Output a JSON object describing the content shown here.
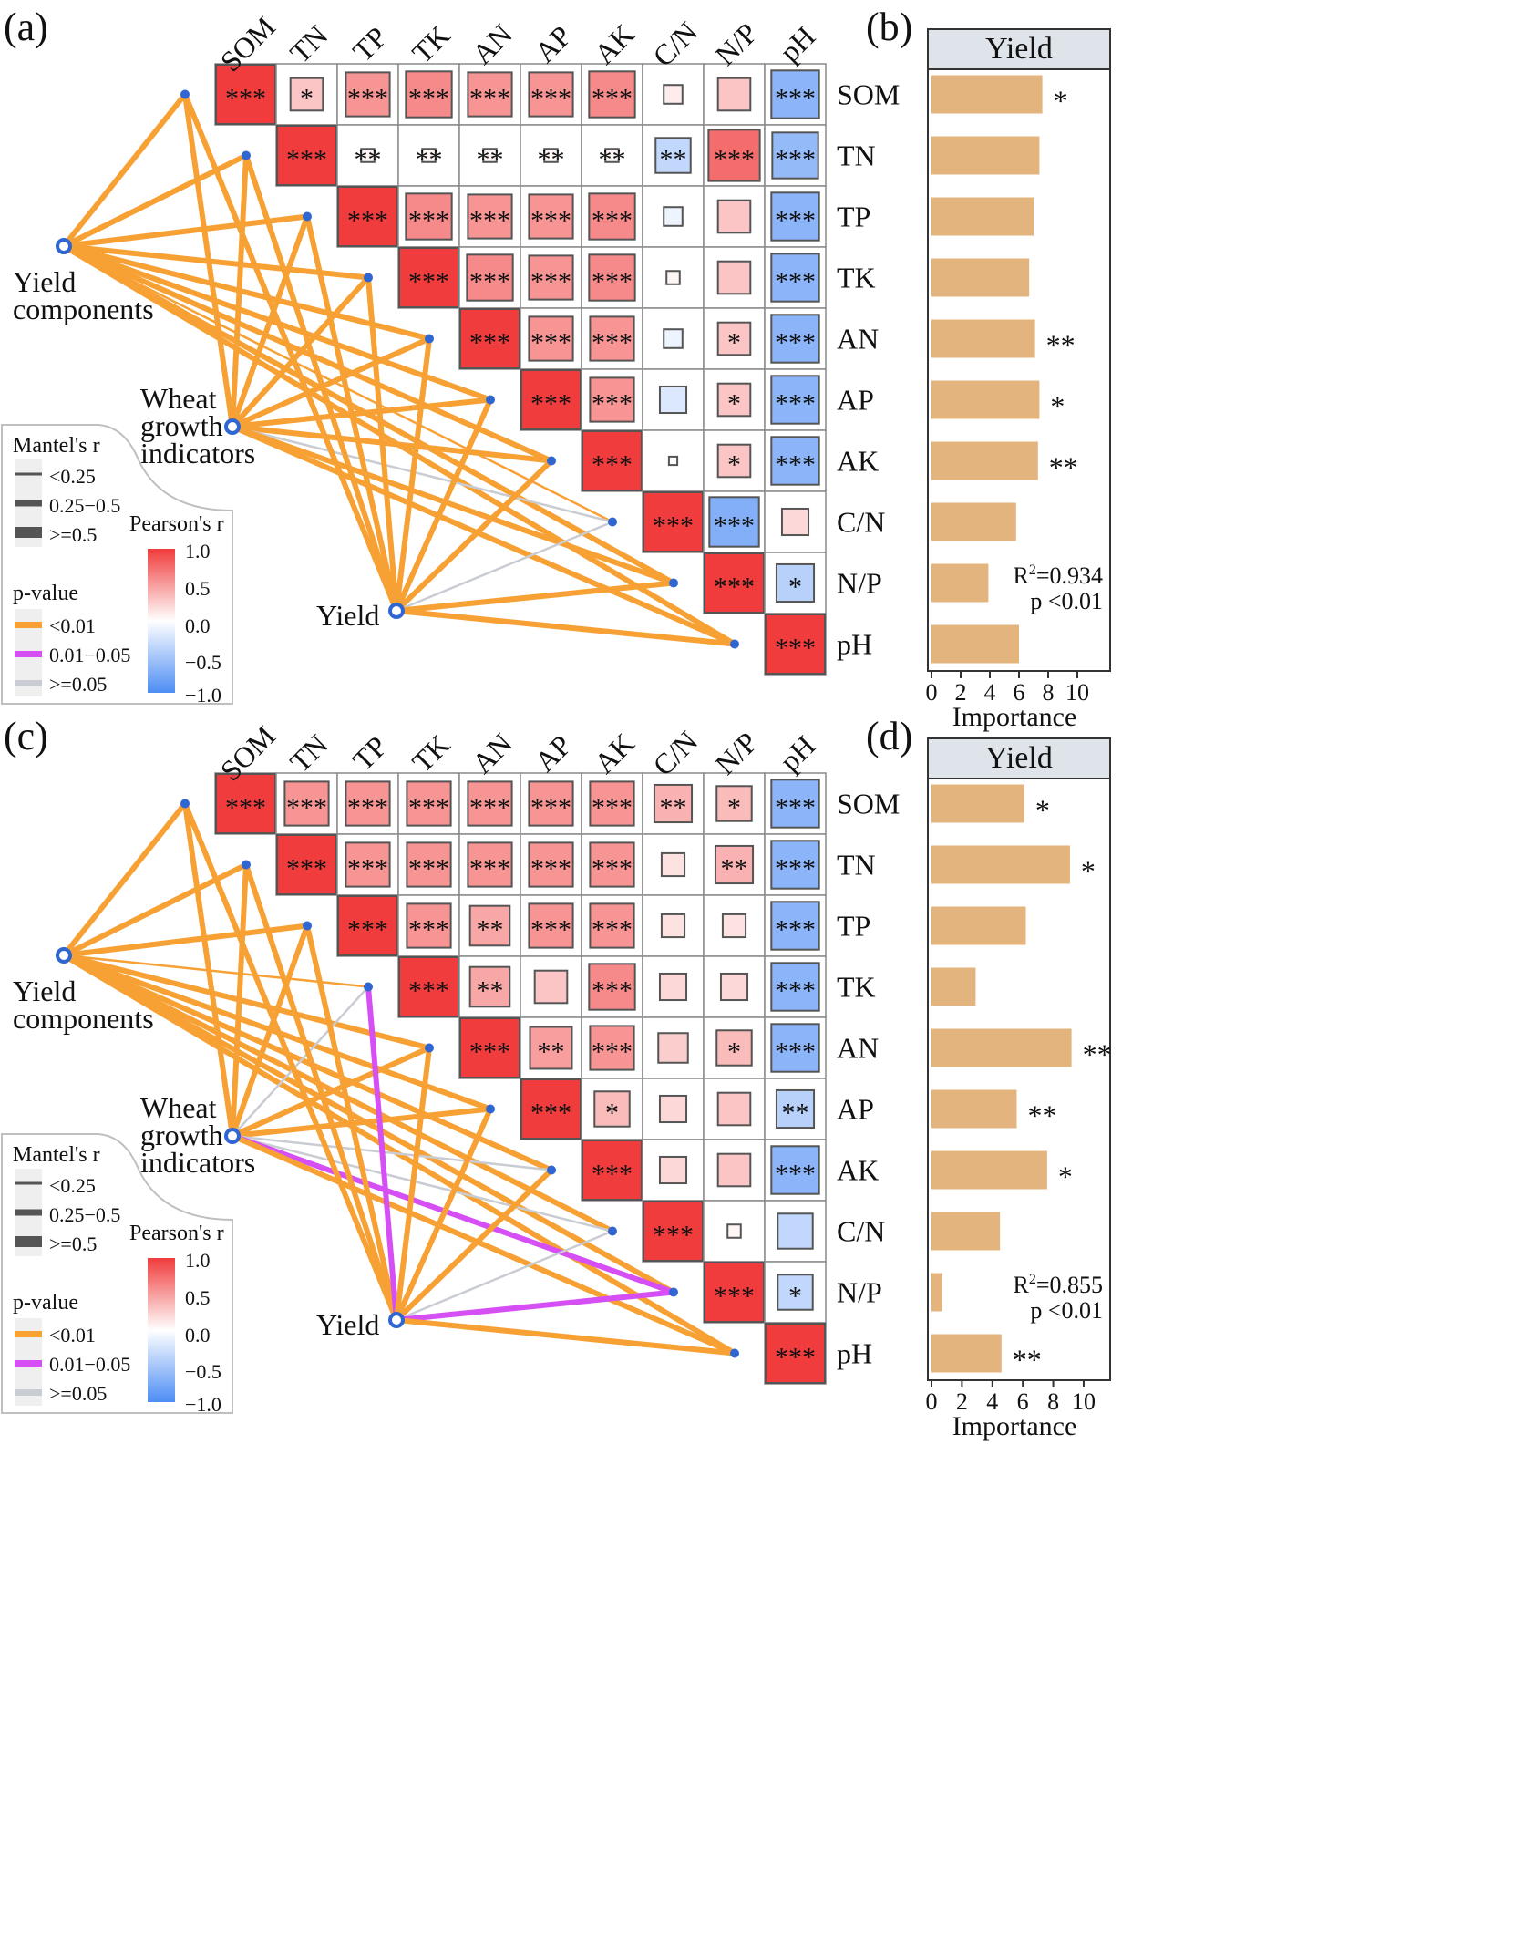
{
  "chart_data": [
    {
      "type": "heatmap",
      "panel_label": "(a)",
      "variables": [
        "SOM",
        "TN",
        "TP",
        "TK",
        "AN",
        "AP",
        "AK",
        "C/N",
        "N/P",
        "pH"
      ],
      "values": [
        [
          1.0,
          0.3,
          0.55,
          0.6,
          0.55,
          0.55,
          0.6,
          0.1,
          0.3,
          -0.65
        ],
        [
          null,
          1.0,
          0.05,
          0.05,
          0.05,
          0.05,
          0.05,
          -0.35,
          0.75,
          -0.6
        ],
        [
          null,
          null,
          1.0,
          0.6,
          0.55,
          0.55,
          0.6,
          -0.1,
          0.3,
          -0.65
        ],
        [
          null,
          null,
          null,
          1.0,
          0.6,
          0.55,
          0.6,
          0.05,
          0.3,
          -0.65
        ],
        [
          null,
          null,
          null,
          null,
          1.0,
          0.55,
          0.55,
          -0.1,
          0.3,
          -0.65
        ],
        [
          null,
          null,
          null,
          null,
          null,
          1.0,
          0.55,
          -0.2,
          0.3,
          -0.65
        ],
        [
          null,
          null,
          null,
          null,
          null,
          null,
          1.0,
          -0.02,
          0.3,
          -0.65
        ],
        [
          null,
          null,
          null,
          null,
          null,
          null,
          null,
          1.0,
          -0.7,
          0.2
        ],
        [
          null,
          null,
          null,
          null,
          null,
          null,
          null,
          null,
          1.0,
          -0.4
        ],
        [
          null,
          null,
          null,
          null,
          null,
          null,
          null,
          null,
          null,
          1.0
        ]
      ],
      "significance": [
        [
          "***",
          "*",
          "***",
          "***",
          "***",
          "***",
          "***",
          "",
          "",
          "***"
        ],
        [
          null,
          "***",
          "**",
          "**",
          "**",
          "**",
          "**",
          "**",
          "***",
          "***"
        ],
        [
          null,
          null,
          "***",
          "***",
          "***",
          "***",
          "***",
          "",
          "",
          "***"
        ],
        [
          null,
          null,
          null,
          "***",
          "***",
          "***",
          "***",
          "",
          "",
          "***"
        ],
        [
          null,
          null,
          null,
          null,
          "***",
          "***",
          "***",
          "",
          "*",
          "***"
        ],
        [
          null,
          null,
          null,
          null,
          null,
          "***",
          "***",
          "",
          "*",
          "***"
        ],
        [
          null,
          null,
          null,
          null,
          null,
          null,
          "***",
          "",
          "*",
          "***"
        ],
        [
          null,
          null,
          null,
          null,
          null,
          null,
          null,
          "***",
          "***",
          ""
        ],
        [
          null,
          null,
          null,
          null,
          null,
          null,
          null,
          null,
          "***",
          "*"
        ],
        [
          null,
          null,
          null,
          null,
          null,
          null,
          null,
          null,
          null,
          "***"
        ]
      ],
      "mantel": {
        "nodes": [
          "Yield components",
          "Wheat growth indicators",
          "Yield"
        ],
        "node_lines": [
          [
            "Yield",
            "components"
          ],
          [
            "Wheat",
            "growth",
            "indicators"
          ],
          [
            "Yield"
          ]
        ],
        "links": [
          {
            "from": 0,
            "to": [
              0,
              1,
              2,
              3,
              4,
              5,
              6,
              7,
              8,
              9
            ],
            "p": [
              "<0.01",
              "<0.01",
              "<0.01",
              "<0.01",
              "<0.01",
              "<0.01",
              "<0.01",
              "<0.01",
              "<0.01",
              "<0.01"
            ],
            "r": [
              "mid",
              "mid",
              "mid",
              "mid",
              "mid",
              "mid",
              "mid",
              "low",
              "mid",
              "mid"
            ]
          },
          {
            "from": 1,
            "to": [
              0,
              1,
              2,
              3,
              4,
              5,
              6,
              7,
              8,
              9
            ],
            "p": [
              "<0.01",
              "<0.01",
              "<0.01",
              "<0.01",
              "<0.01",
              "<0.01",
              "<0.01",
              ">=0.05",
              "<0.01",
              "<0.01"
            ],
            "r": [
              "mid",
              "mid",
              "mid",
              "mid",
              "mid",
              "mid",
              "mid",
              "low",
              "mid",
              "mid"
            ]
          },
          {
            "from": 2,
            "to": [
              0,
              1,
              2,
              3,
              4,
              5,
              6,
              7,
              8,
              9
            ],
            "p": [
              "<0.01",
              "<0.01",
              "<0.01",
              "<0.01",
              "<0.01",
              "<0.01",
              "<0.01",
              ">=0.05",
              "<0.01",
              "<0.01"
            ],
            "r": [
              "mid",
              "mid",
              "mid",
              "mid",
              "mid",
              "mid",
              "mid",
              "low",
              "mid",
              "mid"
            ]
          }
        ]
      }
    },
    {
      "type": "bar",
      "panel_label": "(b)",
      "title": "Yield",
      "categories": [
        "SOM",
        "TN",
        "TP",
        "TK",
        "AN",
        "AP",
        "AK",
        "C/N",
        "N/P",
        "pH"
      ],
      "values": [
        7.6,
        7.4,
        7.0,
        6.7,
        7.1,
        7.4,
        7.3,
        5.8,
        3.9,
        6.0
      ],
      "significance": [
        "*",
        "",
        "",
        "",
        "**",
        "*",
        "**",
        "",
        "",
        ""
      ],
      "xlabel": "Importance",
      "xlim": [
        0,
        12
      ],
      "xticks": [
        0,
        2,
        4,
        6,
        8,
        10
      ],
      "annotation": {
        "r2_label": "R",
        "r2_sup": "2",
        "r2_value": "=0.934",
        "p_text": "p <0.01"
      }
    },
    {
      "type": "heatmap",
      "panel_label": "(c)",
      "variables": [
        "SOM",
        "TN",
        "TP",
        "TK",
        "AN",
        "AP",
        "AK",
        "C/N",
        "N/P",
        "pH"
      ],
      "values": [
        [
          1.0,
          0.55,
          0.55,
          0.55,
          0.55,
          0.55,
          0.55,
          0.4,
          0.35,
          -0.65
        ],
        [
          null,
          1.0,
          0.55,
          0.55,
          0.55,
          0.55,
          0.55,
          0.15,
          0.4,
          -0.65
        ],
        [
          null,
          null,
          1.0,
          0.55,
          0.45,
          0.55,
          0.55,
          0.15,
          0.15,
          -0.65
        ],
        [
          null,
          null,
          null,
          1.0,
          0.45,
          0.3,
          0.6,
          0.2,
          0.2,
          -0.65
        ],
        [
          null,
          null,
          null,
          null,
          1.0,
          0.5,
          0.55,
          0.25,
          0.35,
          -0.65
        ],
        [
          null,
          null,
          null,
          null,
          null,
          1.0,
          0.35,
          0.2,
          0.3,
          -0.4
        ],
        [
          null,
          null,
          null,
          null,
          null,
          null,
          1.0,
          0.2,
          0.3,
          -0.65
        ],
        [
          null,
          null,
          null,
          null,
          null,
          null,
          null,
          1.0,
          0.05,
          -0.35
        ],
        [
          null,
          null,
          null,
          null,
          null,
          null,
          null,
          null,
          1.0,
          -0.35
        ],
        [
          null,
          null,
          null,
          null,
          null,
          null,
          null,
          null,
          null,
          1.0
        ]
      ],
      "significance": [
        [
          "***",
          "***",
          "***",
          "***",
          "***",
          "***",
          "***",
          "**",
          "*",
          "***"
        ],
        [
          null,
          "***",
          "***",
          "***",
          "***",
          "***",
          "***",
          "",
          "**",
          "***"
        ],
        [
          null,
          null,
          "***",
          "***",
          "**",
          "***",
          "***",
          "",
          "",
          "***"
        ],
        [
          null,
          null,
          null,
          "***",
          "**",
          "",
          "***",
          "",
          "",
          "***"
        ],
        [
          null,
          null,
          null,
          null,
          "***",
          "**",
          "***",
          "",
          "*",
          "***"
        ],
        [
          null,
          null,
          null,
          null,
          null,
          "***",
          "*",
          "",
          "",
          "**"
        ],
        [
          null,
          null,
          null,
          null,
          null,
          null,
          "***",
          "",
          "",
          "***"
        ],
        [
          null,
          null,
          null,
          null,
          null,
          null,
          null,
          "***",
          "",
          ""
        ],
        [
          null,
          null,
          null,
          null,
          null,
          null,
          null,
          null,
          "***",
          "*"
        ],
        [
          null,
          null,
          null,
          null,
          null,
          null,
          null,
          null,
          null,
          "***"
        ]
      ],
      "mantel": {
        "nodes": [
          "Yield components",
          "Wheat growth indicators",
          "Yield"
        ],
        "node_lines": [
          [
            "Yield",
            "components"
          ],
          [
            "Wheat",
            "growth",
            "indicators"
          ],
          [
            "Yield"
          ]
        ],
        "links": [
          {
            "from": 0,
            "to": [
              0,
              1,
              2,
              3,
              4,
              5,
              6,
              7,
              8,
              9
            ],
            "p": [
              "<0.01",
              "<0.01",
              "<0.01",
              "<0.01",
              "<0.01",
              "<0.01",
              "<0.01",
              "<0.01",
              "<0.01",
              "<0.01"
            ],
            "r": [
              "mid",
              "mid",
              "mid",
              "low",
              "mid",
              "mid",
              "mid",
              "mid",
              "mid",
              "mid"
            ]
          },
          {
            "from": 1,
            "to": [
              0,
              1,
              2,
              3,
              4,
              5,
              6,
              7,
              8,
              9
            ],
            "p": [
              "<0.01",
              "<0.01",
              "<0.01",
              ">=0.05",
              "<0.01",
              "<0.01",
              ">=0.05",
              ">=0.05",
              "0.01-0.05",
              "<0.01"
            ],
            "r": [
              "mid",
              "mid",
              "mid",
              "low",
              "mid",
              "mid",
              "low",
              "low",
              "mid",
              "mid"
            ]
          },
          {
            "from": 2,
            "to": [
              0,
              1,
              2,
              3,
              4,
              5,
              6,
              7,
              8,
              9
            ],
            "p": [
              "<0.01",
              "<0.01",
              "<0.01",
              "0.01-0.05",
              "<0.01",
              "<0.01",
              "<0.01",
              ">=0.05",
              "0.01-0.05",
              "<0.01"
            ],
            "r": [
              "mid",
              "mid",
              "mid",
              "mid",
              "mid",
              "mid",
              "mid",
              "low",
              "mid",
              "mid"
            ]
          }
        ]
      }
    },
    {
      "type": "bar",
      "panel_label": "(d)",
      "title": "Yield",
      "categories": [
        "SOM",
        "TN",
        "TP",
        "TK",
        "AN",
        "AP",
        "AK",
        "C/N",
        "N/P",
        "pH"
      ],
      "values": [
        6.1,
        9.1,
        6.2,
        2.9,
        9.2,
        5.6,
        7.6,
        4.5,
        0.7,
        4.6
      ],
      "significance": [
        "*",
        "*",
        "",
        "",
        "**",
        "**",
        "*",
        "",
        "",
        "**"
      ],
      "xlabel": "Importance",
      "xlim": [
        0,
        11.5
      ],
      "xticks": [
        0,
        2,
        4,
        6,
        8,
        10
      ],
      "annotation": {
        "r2_label": "R",
        "r2_sup": "2",
        "r2_value": "=0.855",
        "p_text": "p <0.01"
      }
    }
  ],
  "legend": {
    "mantel_title": "Mantel's r",
    "mantel_items": [
      "<0.25",
      "0.25−0.5",
      ">=0.5"
    ],
    "p_title": "p-value",
    "p_items": [
      "<0.01",
      "0.01−0.05",
      ">=0.05"
    ],
    "p_colors": [
      "#f7a135",
      "#d54ff4",
      "#c9ccd3"
    ],
    "pearson_title": "Pearson's r",
    "pearson_ticks": [
      "1.0",
      "0.5",
      "0.0",
      "−0.5",
      "−1.0"
    ]
  },
  "colors": {
    "positive": "#f03c3c",
    "negative": "#4d8df4",
    "bar": "#e4b47e",
    "node": "#2f66d1",
    "strip": "#dfe3ea"
  }
}
